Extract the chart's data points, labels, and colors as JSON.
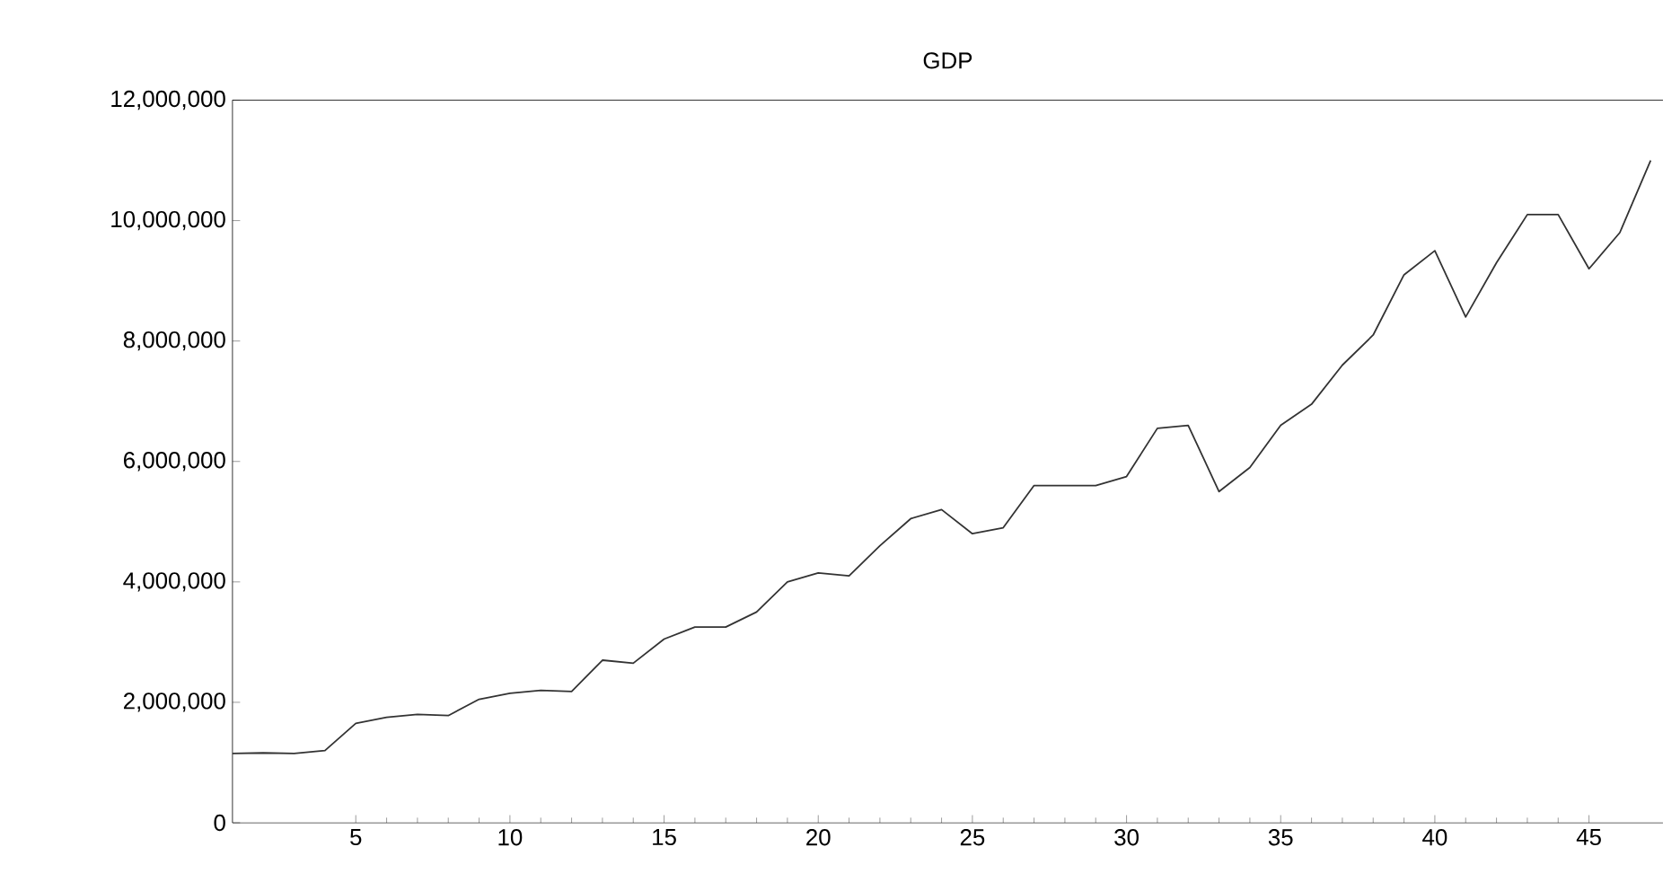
{
  "chart_data": {
    "type": "line",
    "title": "GDP",
    "x": [
      1,
      2,
      3,
      4,
      5,
      6,
      7,
      8,
      9,
      10,
      11,
      12,
      13,
      14,
      15,
      16,
      17,
      18,
      19,
      20,
      21,
      22,
      23,
      24,
      25,
      26,
      27,
      28,
      29,
      30,
      31,
      32,
      33,
      34,
      35,
      36,
      37,
      38,
      39,
      40,
      41,
      42,
      43,
      44,
      45,
      46,
      47
    ],
    "series": [
      {
        "color": "#333333",
        "values": [
          1150000.0,
          1160000.0,
          1150000.0,
          1200000.0,
          1650000.0,
          1750000.0,
          1800000.0,
          1780000.0,
          2050000.0,
          2150000.0,
          2200000.0,
          2180000.0,
          2700000.0,
          2650000.0,
          3050000.0,
          3250000.0,
          3250000.0,
          3500000.0,
          4000000.0,
          4150000.0,
          4100000.0,
          4600000.0,
          5050000.0,
          5200000.0,
          4800000.0,
          4900000.0,
          5600000.0,
          5600000.0,
          5600000.0,
          5750000.0,
          6550000.0,
          6600000.0,
          5500000.0,
          5900000.0,
          6600000.0,
          6950000.0,
          7600000.0,
          8100000.0,
          9100000.0,
          9500000.0,
          8400000.0,
          9300000.0,
          10100000.0,
          10100000.0,
          9200000.0,
          9800000.0,
          11000000.0
        ]
      }
    ],
    "xlim": [
      1,
      47.4
    ],
    "xticks": [
      5,
      10,
      15,
      20,
      25,
      30,
      35,
      40,
      45
    ],
    "ylim": [
      0,
      12000000
    ],
    "yticks": [
      {
        "value": 0,
        "label": "0"
      },
      {
        "value": 2000000,
        "label": "2,000,000"
      },
      {
        "value": 4000000,
        "label": "4,000,000"
      },
      {
        "value": 6000000,
        "label": "6,000,000"
      },
      {
        "value": 8000000,
        "label": "8,000,000"
      },
      {
        "value": 10000000,
        "label": "10,000,000"
      },
      {
        "value": 12000000,
        "label": "12,000,000"
      }
    ],
    "grid": false,
    "marker": "none",
    "line_style": "solid"
  }
}
